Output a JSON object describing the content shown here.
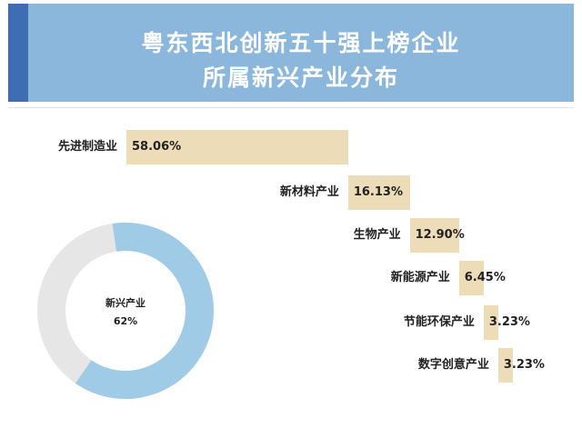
{
  "header": {
    "title_line1": "粤东西北创新五十强上榜企业",
    "title_line2": "所属新兴产业分布"
  },
  "colors": {
    "header_bg": "#8bb7dc",
    "header_accent": "#3f6db3",
    "bar": "#ecdcb7",
    "donut_fill": "#9fcbe6",
    "donut_track": "#e6e6e6"
  },
  "chart_data": [
    {
      "type": "bar",
      "orientation": "horizontal",
      "categories": [
        "先进制造业",
        "新材料产业",
        "生物产业",
        "新能源产业",
        "节能环保产业",
        "数字创意产业"
      ],
      "values": [
        58.06,
        16.13,
        12.9,
        6.45,
        3.23,
        3.23
      ],
      "value_labels": [
        "58.06%",
        "16.13%",
        "12.90%",
        "6.45%",
        "3.23%",
        "3.23%"
      ],
      "unit": "%"
    },
    {
      "type": "pie",
      "style": "donut",
      "center_label": "新兴产业",
      "center_value_label": "62%",
      "value": 62
    }
  ]
}
